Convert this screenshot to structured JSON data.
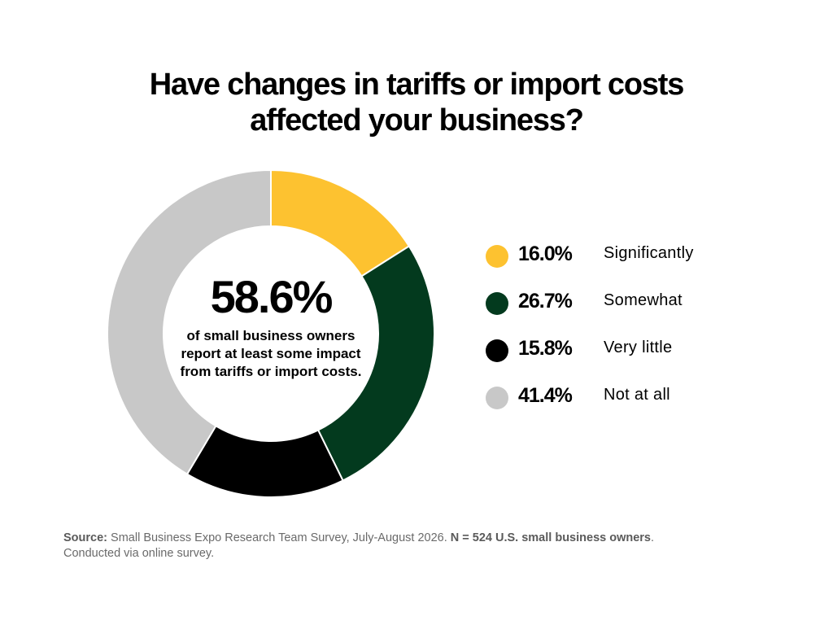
{
  "title_lines": [
    "Have changes in tariffs or import costs",
    "affected your business?"
  ],
  "center": {
    "value": "58.6%",
    "caption": "of small business owners report at least some impact from tariffs or import costs."
  },
  "chart_data": {
    "type": "pie",
    "donut": true,
    "title": "Have changes in tariffs or import costs affected your business?",
    "legend_position": "right",
    "slices": [
      {
        "label": "Significantly",
        "value": 16.0,
        "display": "16.0%",
        "color": "#FDC230"
      },
      {
        "label": "Somewhat",
        "value": 26.7,
        "display": "26.7%",
        "color": "#033A1E"
      },
      {
        "label": "Very little",
        "value": 15.8,
        "display": "15.8%",
        "color": "#000000"
      },
      {
        "label": "Not at all",
        "value": 41.4,
        "display": "41.4%",
        "color": "#C8C8C8"
      }
    ]
  },
  "source": {
    "label": "Source:",
    "text1": " Small Business Expo Research Team Survey, July-August 2026. ",
    "bold_n": "N = 524  U.S. small business owners",
    "text2": ".",
    "text3": "Conducted via online survey."
  }
}
